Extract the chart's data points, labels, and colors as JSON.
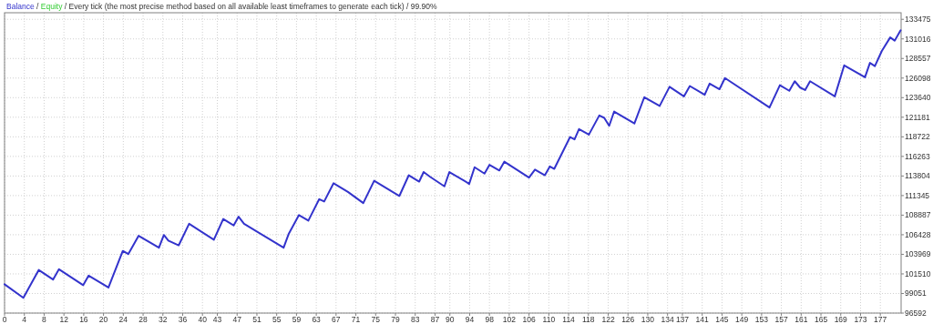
{
  "chart_data": {
    "type": "line",
    "title": "Every tick (the most precise method based on all available least timeframes to generate each tick) / 99.90%",
    "annotations": [
      "/",
      "/"
    ],
    "legend": "top left",
    "grid": true,
    "line_style": "solid",
    "marker": "none",
    "xlim": [
      0,
      181.2
    ],
    "xticks": [
      0,
      4,
      8,
      12,
      16,
      20,
      24,
      28,
      32,
      36,
      40,
      43,
      47,
      51,
      55,
      59,
      63,
      67,
      71,
      75,
      79,
      83,
      87,
      90,
      94,
      98,
      102,
      106,
      110,
      114,
      118,
      122,
      126,
      130,
      134,
      137,
      141,
      145,
      149,
      153,
      157,
      161,
      165,
      169,
      173,
      177
    ],
    "ylim": [
      96592,
      134300
    ],
    "yticks": [
      96592,
      99051,
      101510,
      103969,
      106428,
      108887,
      111345,
      113804,
      116263,
      118722,
      121181,
      123640,
      126098,
      128557,
      131016,
      133475
    ],
    "x": [
      0,
      3.8,
      6.9,
      9.8,
      11,
      15.9,
      17,
      21,
      23.9,
      25,
      27.1,
      31.2,
      32.2,
      33.1,
      35.2,
      37.3,
      42.3,
      44.2,
      46.3,
      47.3,
      48.4,
      56.4,
      57.4,
      59.5,
      61.4,
      63.6,
      64.6,
      66.5,
      69.4,
      72.5,
      74.7,
      79.8,
      81.7,
      83.8,
      84.7,
      86,
      88.9,
      89.9,
      93.2,
      93.9,
      95,
      97,
      98,
      100,
      101,
      106,
      107.2,
      109.2,
      110.2,
      111.1,
      114.3,
      115.2,
      116.1,
      118.1,
      120.2,
      121.2,
      122.2,
      123.2,
      127.3,
      129.3,
      132.4,
      134.4,
      137.3,
      138.5,
      141.5,
      142.5,
      144.5,
      145.6,
      154.6,
      156.7,
      158.6,
      159.7,
      160.8,
      161.8,
      162.8,
      167.8,
      169.7,
      173.9,
      174.9,
      175.9,
      177.3,
      179,
      179.9,
      181.1
    ],
    "series": [
      {
        "name": "Balance",
        "color": "#3333cc",
        "values": [
          100200,
          98500,
          102000,
          100800,
          102100,
          100100,
          101300,
          99800,
          104400,
          104000,
          106300,
          104800,
          106400,
          105700,
          105100,
          107800,
          105800,
          108400,
          107600,
          108700,
          107800,
          104800,
          106500,
          108900,
          108200,
          110900,
          110600,
          112900,
          111800,
          110400,
          113200,
          111300,
          113900,
          113100,
          114300,
          113700,
          112500,
          114300,
          113100,
          112800,
          114900,
          114100,
          115200,
          114500,
          115600,
          113600,
          114600,
          113900,
          115000,
          114700,
          118700,
          118400,
          119700,
          119000,
          121400,
          121100,
          120100,
          121900,
          120400,
          123700,
          122600,
          125000,
          123800,
          125100,
          124000,
          125400,
          124700,
          126100,
          122400,
          125200,
          124500,
          125700,
          124900,
          124600,
          125700,
          123800,
          127700,
          126200,
          128000,
          127600,
          129500,
          131200,
          130800,
          132100
        ]
      },
      {
        "name": "Equity",
        "color": "#33cc33",
        "values": [
          null,
          null,
          null,
          null,
          null,
          null,
          null,
          null,
          null,
          null,
          null,
          null,
          null,
          null,
          null,
          null,
          null,
          null,
          null,
          null,
          null,
          null,
          null,
          null,
          null,
          null,
          null,
          null,
          null,
          null,
          null,
          null,
          null,
          null,
          null,
          null,
          null,
          null,
          null,
          null,
          null,
          null,
          null,
          null,
          null,
          null,
          null,
          null,
          null,
          null,
          null,
          null,
          null,
          null,
          null,
          null,
          null,
          null,
          null,
          null,
          null,
          null,
          null,
          null,
          null,
          null,
          null,
          null,
          null,
          null,
          null,
          null,
          null,
          null,
          null,
          null,
          null,
          null,
          null,
          null,
          null,
          null,
          null,
          null
        ]
      }
    ]
  }
}
